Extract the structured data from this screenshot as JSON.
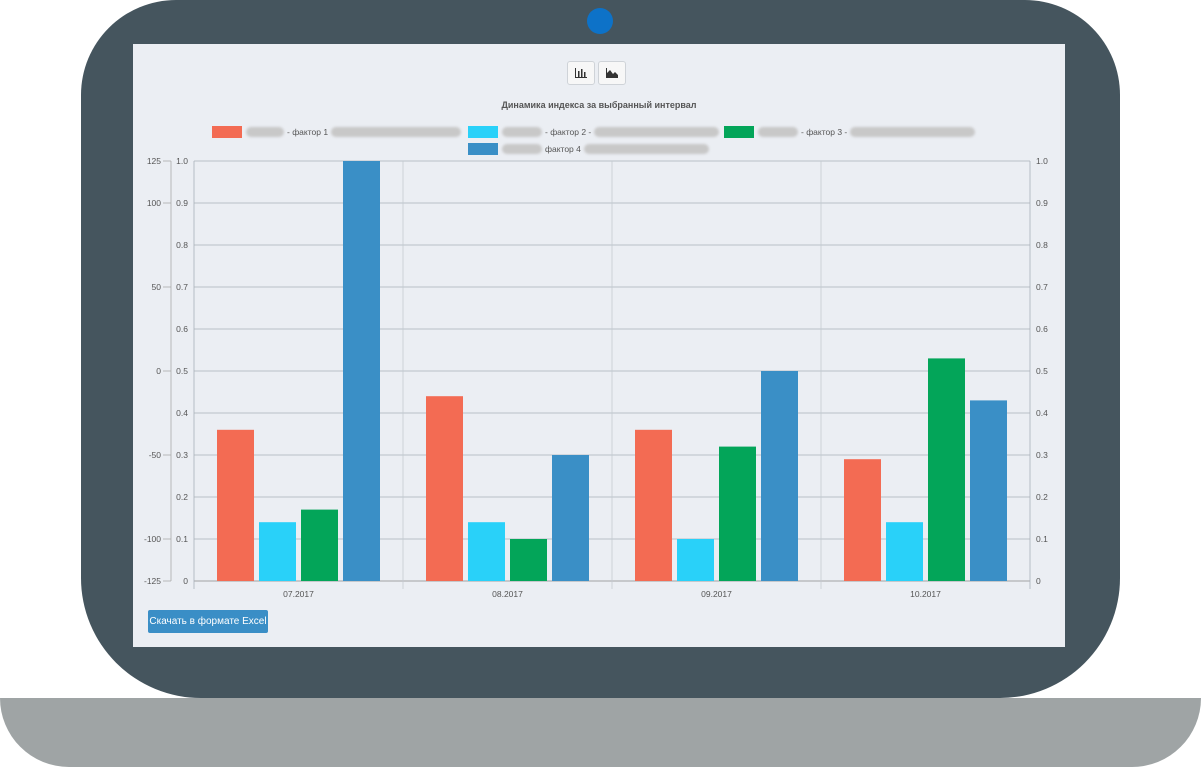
{
  "toolbar": {
    "bar_icon": "bar-chart-icon",
    "area_icon": "area-chart-icon"
  },
  "download_button_label": "Скачать в формате Excel",
  "colors": {
    "factor1": "#f36b53",
    "factor2": "#29d1f9",
    "factor3": "#03a559",
    "factor4": "#3a8fc6"
  },
  "chart_data": {
    "type": "bar",
    "title": "Динамика индекса за выбранный интервал",
    "categories": [
      "07.2017",
      "08.2017",
      "09.2017",
      "10.2017"
    ],
    "series": [
      {
        "name": "- фактор 1",
        "values": [
          0.36,
          0.44,
          0.36,
          0.29
        ]
      },
      {
        "name": "- фактор 2 -",
        "values": [
          0.14,
          0.14,
          0.1,
          0.14
        ]
      },
      {
        "name": "- фактор 3 -",
        "values": [
          0.17,
          0.1,
          0.32,
          0.53
        ]
      },
      {
        "name": "фактор 4",
        "values": [
          1.0,
          0.3,
          0.5,
          0.43
        ]
      }
    ],
    "left_axis_outer": {
      "ticks": [
        "125",
        "100",
        "50",
        "0",
        "-50",
        "-100",
        "-125"
      ]
    },
    "left_axis": {
      "ylim": [
        0,
        1.0
      ],
      "ticks": [
        "0",
        "0.1",
        "0.2",
        "0.3",
        "0.4",
        "0.5",
        "0.6",
        "0.7",
        "0.8",
        "0.9",
        "1.0"
      ]
    },
    "right_axis": {
      "ylim": [
        0,
        1.0
      ],
      "ticks": [
        "0",
        "0.1",
        "0.2",
        "0.3",
        "0.4",
        "0.5",
        "0.6",
        "0.7",
        "0.8",
        "0.9",
        "1.0"
      ]
    },
    "legend_position": "top",
    "grid": true
  }
}
